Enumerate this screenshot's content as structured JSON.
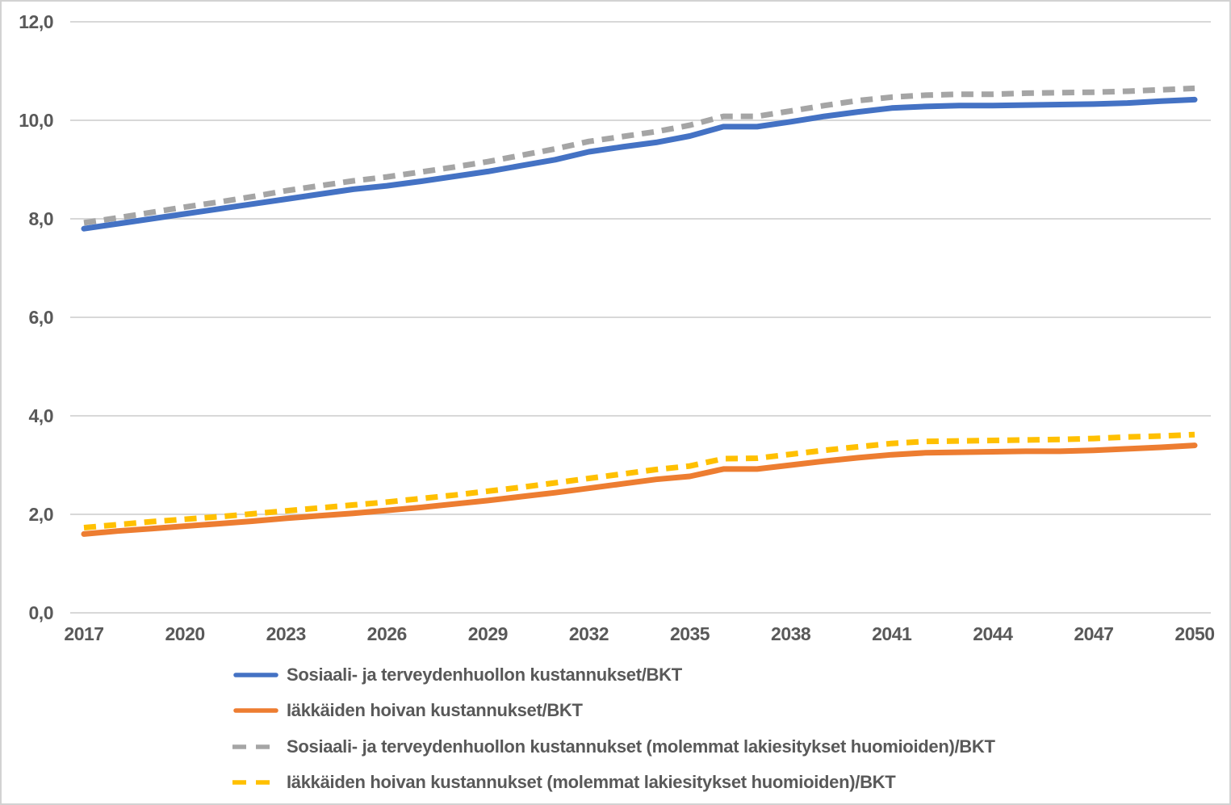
{
  "chart_data": {
    "type": "line",
    "title": "",
    "xlabel": "",
    "ylabel": "",
    "ylim": [
      0,
      12
    ],
    "grid": "horizontal",
    "legend_position": "bottom-left",
    "decimal_separator": ",",
    "x": [
      2017,
      2018,
      2019,
      2020,
      2021,
      2022,
      2023,
      2024,
      2025,
      2026,
      2027,
      2028,
      2029,
      2030,
      2031,
      2032,
      2033,
      2034,
      2035,
      2036,
      2037,
      2038,
      2039,
      2040,
      2041,
      2042,
      2043,
      2044,
      2045,
      2046,
      2047,
      2048,
      2049,
      2050
    ],
    "xticks": [
      "2017",
      "2020",
      "2023",
      "2026",
      "2029",
      "2032",
      "2035",
      "2038",
      "2041",
      "2044",
      "2047",
      "2050"
    ],
    "yticks": [
      {
        "label": "12,0",
        "value": 12
      },
      {
        "label": "10,0",
        "value": 10
      },
      {
        "label": "8,0",
        "value": 8
      },
      {
        "label": "6,0",
        "value": 6
      },
      {
        "label": "4,0",
        "value": 4
      },
      {
        "label": "2,0",
        "value": 2
      },
      {
        "label": "0,0",
        "value": 0
      }
    ],
    "series": [
      {
        "name": "Sosiaali- ja terveydenhuollon kustannukset/BKT",
        "color": "#4472C4",
        "dash": false,
        "values": [
          7.8,
          7.9,
          8.0,
          8.1,
          8.2,
          8.3,
          8.4,
          8.5,
          8.6,
          8.67,
          8.76,
          8.86,
          8.96,
          9.08,
          9.2,
          9.36,
          9.46,
          9.55,
          9.68,
          9.87,
          9.87,
          9.97,
          10.08,
          10.17,
          10.25,
          10.28,
          10.3,
          10.3,
          10.31,
          10.32,
          10.33,
          10.35,
          10.39,
          10.42
        ]
      },
      {
        "name": "Iäkkäiden hoivan kustannukset/BKT",
        "color": "#ED7D31",
        "dash": false,
        "values": [
          1.6,
          1.66,
          1.71,
          1.76,
          1.81,
          1.86,
          1.92,
          1.97,
          2.02,
          2.08,
          2.14,
          2.21,
          2.28,
          2.36,
          2.44,
          2.53,
          2.62,
          2.71,
          2.77,
          2.92,
          2.92,
          3.0,
          3.08,
          3.15,
          3.21,
          3.25,
          3.26,
          3.27,
          3.28,
          3.28,
          3.3,
          3.33,
          3.36,
          3.4
        ]
      },
      {
        "name": "Sosiaali- ja terveydenhuollon kustannukset (molemmat lakiesitykset huomioiden)/BKT",
        "color": "#A5A5A5",
        "dash": true,
        "values": [
          7.92,
          8.02,
          8.13,
          8.24,
          8.34,
          8.45,
          8.57,
          8.67,
          8.77,
          8.85,
          8.95,
          9.05,
          9.16,
          9.29,
          9.42,
          9.57,
          9.67,
          9.77,
          9.9,
          10.08,
          10.08,
          10.19,
          10.3,
          10.4,
          10.47,
          10.51,
          10.53,
          10.53,
          10.55,
          10.56,
          10.57,
          10.59,
          10.62,
          10.65
        ]
      },
      {
        "name": "Iäkkäiden hoivan kustannukset (molemmat lakiesitykset huomioiden)/BKT",
        "color": "#FFC000",
        "dash": true,
        "values": [
          1.73,
          1.79,
          1.85,
          1.9,
          1.95,
          2.01,
          2.07,
          2.13,
          2.19,
          2.25,
          2.32,
          2.39,
          2.47,
          2.55,
          2.64,
          2.73,
          2.82,
          2.91,
          2.98,
          3.13,
          3.14,
          3.22,
          3.3,
          3.37,
          3.44,
          3.48,
          3.49,
          3.5,
          3.51,
          3.52,
          3.54,
          3.57,
          3.59,
          3.62
        ]
      }
    ],
    "colors": {
      "gridline": "#d8d8d8",
      "axis_text": "#595959",
      "legend_text": "#595959",
      "background": "#ffffff",
      "border": "#d2d2d2"
    }
  }
}
